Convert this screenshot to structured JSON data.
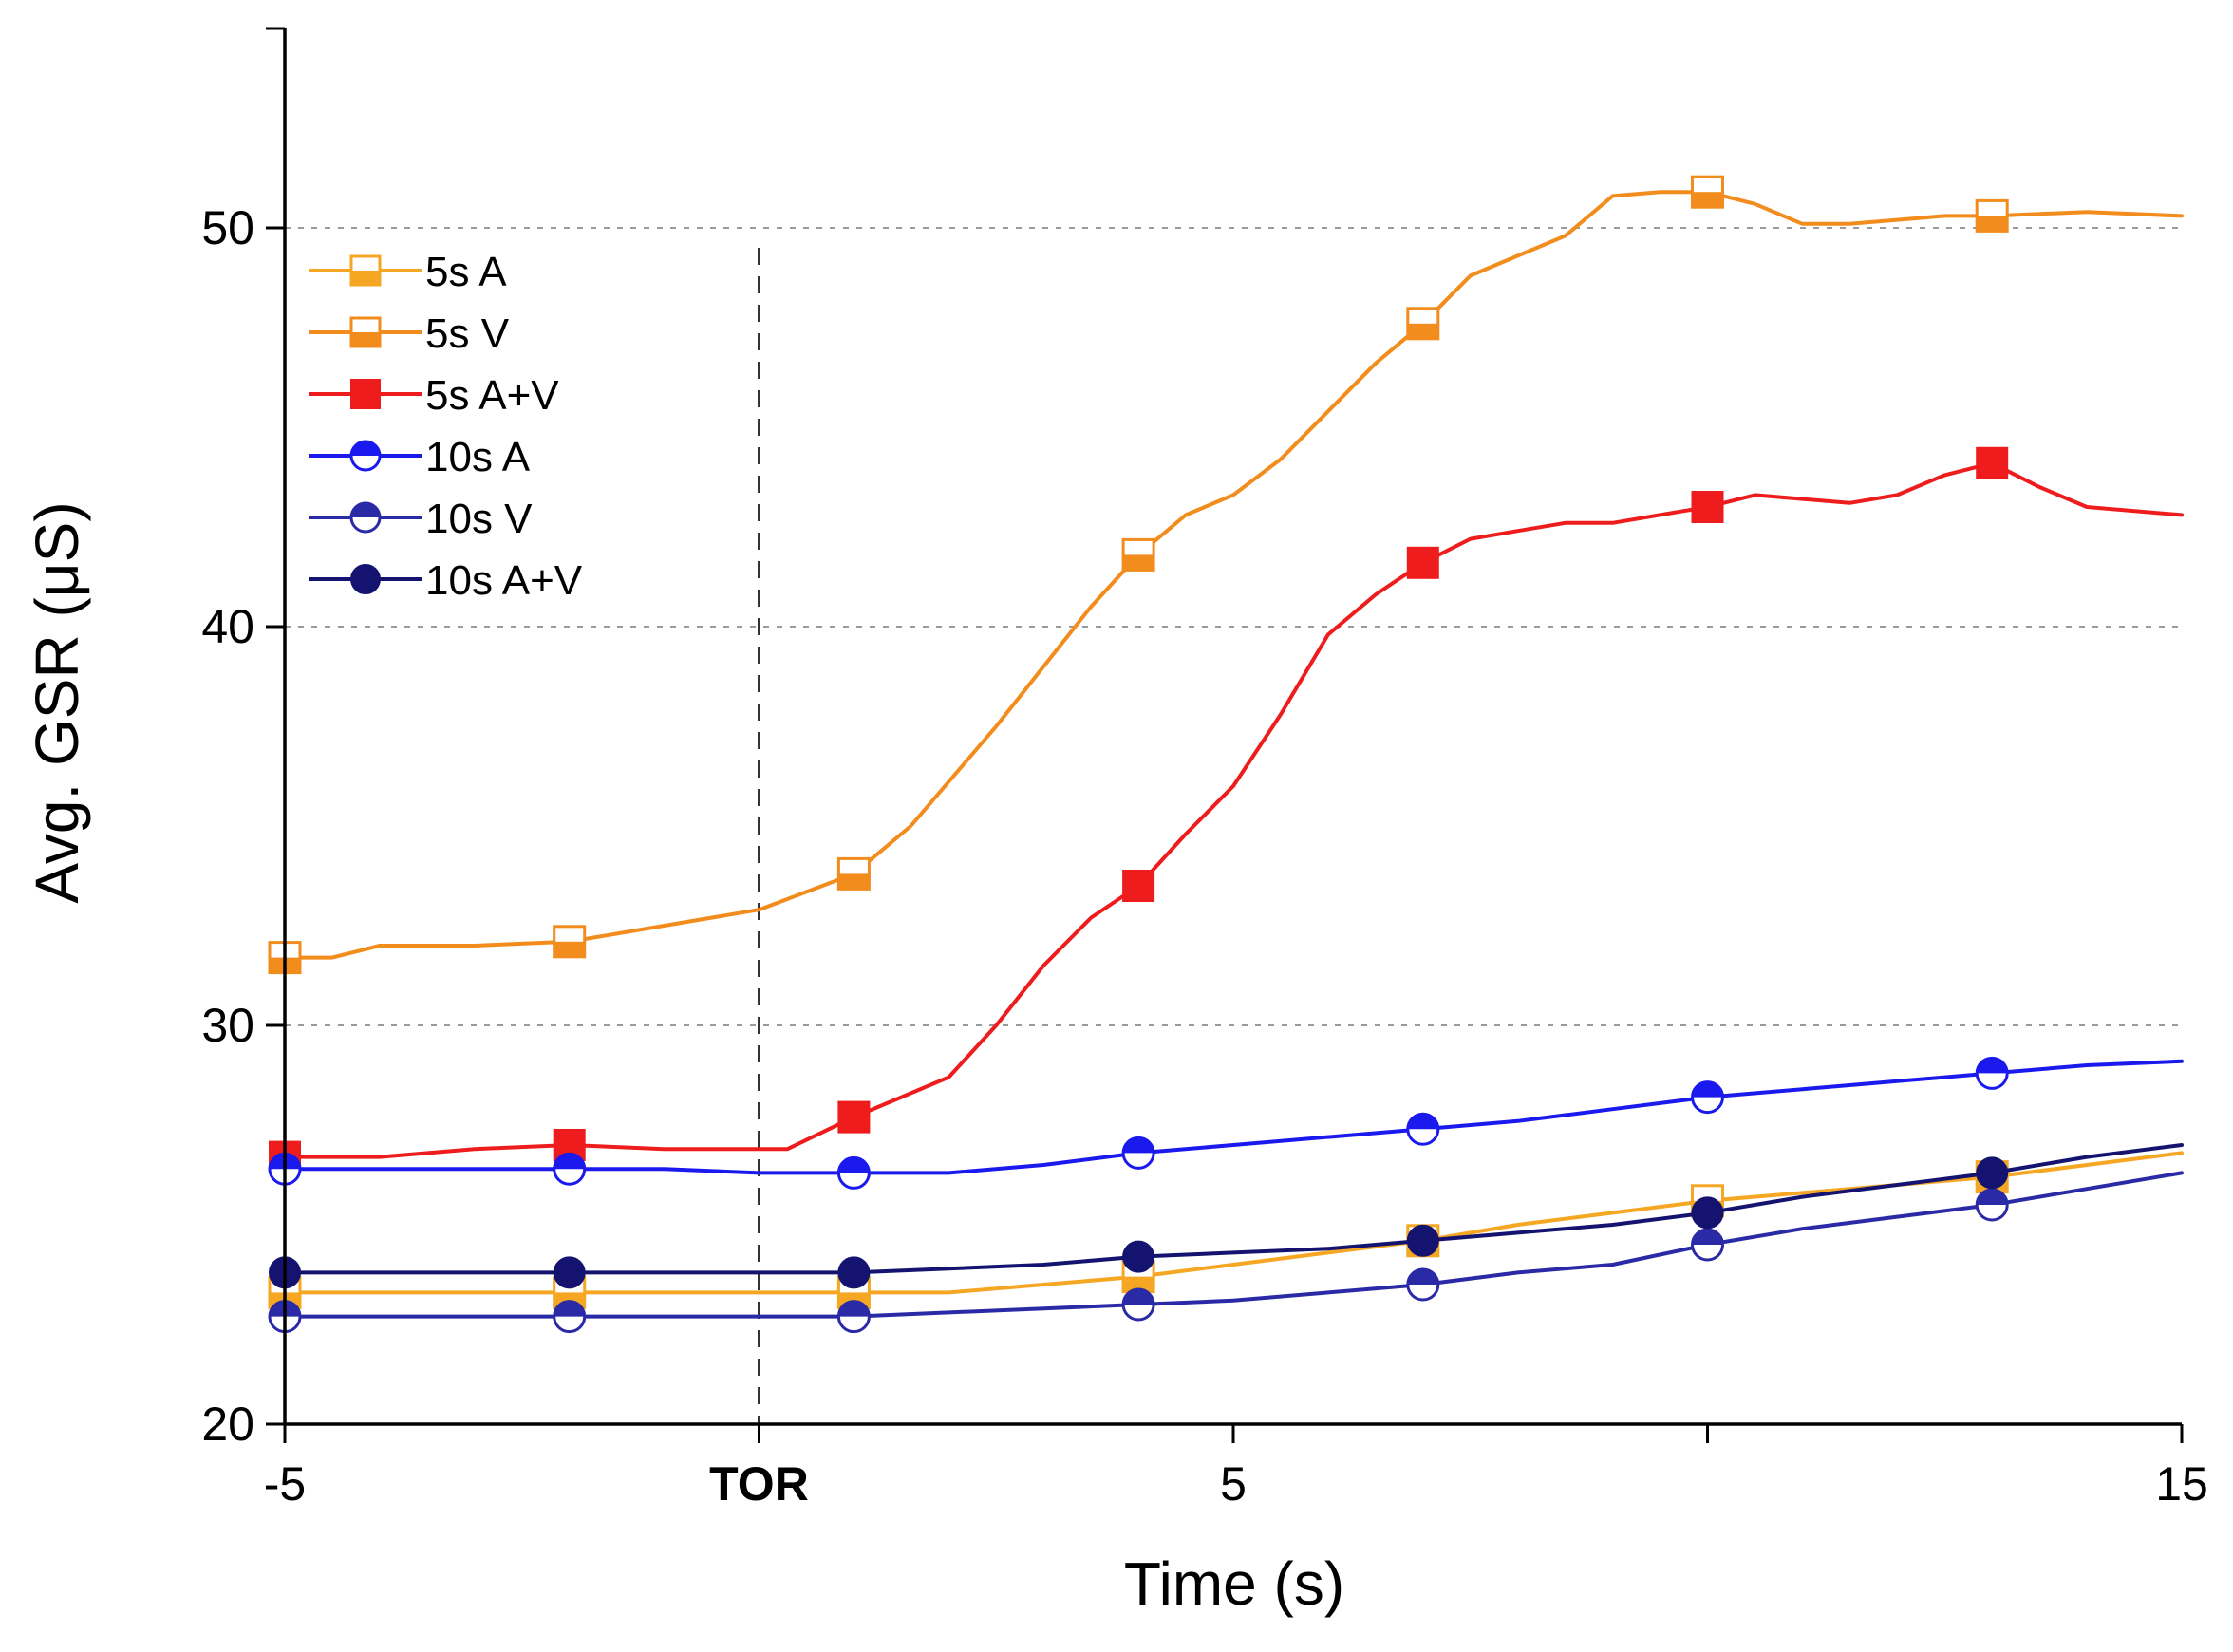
{
  "chart_data": {
    "type": "line",
    "title": "",
    "xlabel": "Time (s)",
    "ylabel": "Avg. GSR (μS)",
    "xlim": [
      -5,
      15
    ],
    "ylim": [
      20,
      55
    ],
    "grid_y": [
      30,
      40,
      50
    ],
    "x_ticks": [
      {
        "value": -5,
        "label": "-5",
        "bold": false
      },
      {
        "value": 0,
        "label": "TOR",
        "bold": true
      },
      {
        "value": 5,
        "label": "5",
        "bold": false
      },
      {
        "value": 15,
        "label": "15",
        "bold": false
      }
    ],
    "x_minor_ticks": [
      10
    ],
    "y_ticks": [
      {
        "value": 20,
        "label": "20"
      },
      {
        "value": 30,
        "label": "30"
      },
      {
        "value": 40,
        "label": "40"
      },
      {
        "value": 50,
        "label": "50"
      }
    ],
    "vertical_marker": {
      "x": 0,
      "label": "TOR"
    },
    "legend_position": "top-left",
    "series": [
      {
        "name": "5s A",
        "color": "#f5a623",
        "marker": "square",
        "fill": "half",
        "x": [
          -5,
          -4,
          -3,
          -2,
          -1,
          0,
          1,
          1.6,
          2,
          3,
          4,
          5,
          6,
          7,
          8,
          9,
          10,
          11,
          12,
          13,
          14,
          15
        ],
        "values": [
          23.3,
          23.3,
          23.3,
          23.3,
          23.3,
          23.3,
          23.3,
          23.3,
          23.3,
          23.5,
          23.7,
          24.0,
          24.3,
          24.6,
          25.0,
          25.3,
          25.6,
          25.8,
          26.0,
          26.2,
          26.5,
          26.8
        ]
      },
      {
        "name": "5s V",
        "color": "#f28c1c",
        "marker": "square",
        "fill": "half",
        "x": [
          -5,
          -4.5,
          -4,
          -3,
          -2,
          -1,
          0,
          1,
          1.6,
          2.5,
          3,
          3.5,
          4,
          4.5,
          5,
          5.5,
          6,
          6.5,
          7,
          7.5,
          8,
          8.5,
          9,
          9.5,
          10,
          10.5,
          11,
          11.5,
          12,
          12.5,
          13,
          14,
          15
        ],
        "values": [
          31.7,
          31.7,
          32.0,
          32.0,
          32.1,
          32.5,
          32.9,
          33.8,
          35.0,
          37.5,
          39.0,
          40.5,
          41.8,
          42.8,
          43.3,
          44.2,
          45.4,
          46.6,
          47.6,
          48.8,
          49.3,
          49.8,
          50.8,
          50.9,
          50.9,
          50.6,
          50.1,
          50.1,
          50.2,
          50.3,
          50.3,
          50.4,
          50.3
        ]
      },
      {
        "name": "5s A+V",
        "color": "#ee1c1c",
        "marker": "square",
        "fill": "full",
        "x": [
          -5,
          -4,
          -3,
          -2,
          -1,
          0,
          0.3,
          1,
          1.5,
          2,
          2.5,
          3,
          3.5,
          4,
          4.5,
          5,
          5.5,
          6,
          6.5,
          7,
          7.5,
          8,
          8.5,
          9,
          9.5,
          10,
          10.5,
          11,
          11.5,
          12,
          12.5,
          13,
          13.5,
          14,
          15
        ],
        "values": [
          26.7,
          26.7,
          26.9,
          27.0,
          26.9,
          26.9,
          26.9,
          27.7,
          28.2,
          28.7,
          30.0,
          31.5,
          32.7,
          33.5,
          34.8,
          36.0,
          37.8,
          39.8,
          40.8,
          41.6,
          42.2,
          42.4,
          42.6,
          42.6,
          42.8,
          43.0,
          43.3,
          43.2,
          43.1,
          43.3,
          43.8,
          44.1,
          43.5,
          43.0,
          42.8
        ]
      },
      {
        "name": "10s A",
        "color": "#1a1aee",
        "marker": "circle",
        "fill": "half",
        "x": [
          -5,
          -4,
          -3,
          -2,
          -1,
          0,
          1,
          2,
          3,
          4,
          5,
          6,
          7,
          8,
          9,
          10,
          11,
          12,
          13,
          14,
          15
        ],
        "values": [
          26.4,
          26.4,
          26.4,
          26.4,
          26.4,
          26.3,
          26.3,
          26.3,
          26.5,
          26.8,
          27.0,
          27.2,
          27.4,
          27.6,
          27.9,
          28.2,
          28.4,
          28.6,
          28.8,
          29.0,
          29.1
        ]
      },
      {
        "name": "10s V",
        "color": "#2a2aa6",
        "marker": "circle",
        "fill": "half",
        "x": [
          -5,
          -4,
          -3,
          -2,
          -1,
          0,
          1,
          2,
          3,
          4,
          5,
          6,
          7,
          8,
          9,
          10,
          11,
          12,
          13,
          14,
          15
        ],
        "values": [
          22.7,
          22.7,
          22.7,
          22.7,
          22.7,
          22.7,
          22.7,
          22.8,
          22.9,
          23.0,
          23.1,
          23.3,
          23.5,
          23.8,
          24.0,
          24.5,
          24.9,
          25.2,
          25.5,
          25.9,
          26.3
        ]
      },
      {
        "name": "10s A+V",
        "color": "#141470",
        "marker": "circle",
        "fill": "full",
        "x": [
          -5,
          -4,
          -3,
          -2,
          -1,
          0,
          1,
          2,
          3,
          4,
          5,
          6,
          7,
          8,
          9,
          10,
          11,
          12,
          13,
          14,
          15
        ],
        "values": [
          23.8,
          23.8,
          23.8,
          23.8,
          23.8,
          23.8,
          23.8,
          23.9,
          24.0,
          24.2,
          24.3,
          24.4,
          24.6,
          24.8,
          25.0,
          25.3,
          25.7,
          26.0,
          26.3,
          26.7,
          27.0
        ]
      }
    ],
    "marker_x": [
      -5,
      -2,
      1,
      4,
      7,
      10,
      13
    ]
  }
}
